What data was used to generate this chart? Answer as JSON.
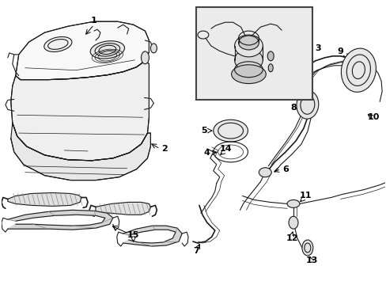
{
  "bg_color": "#ffffff",
  "line_color": "#1a1a1a",
  "lw": 0.8,
  "lw_thick": 1.2,
  "lw_thin": 0.5,
  "fig_w": 4.89,
  "fig_h": 3.6,
  "dpi": 100
}
